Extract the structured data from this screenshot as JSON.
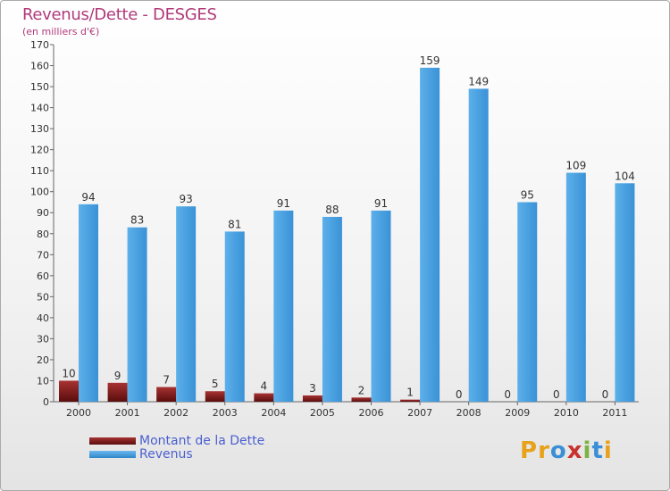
{
  "chart_data": {
    "type": "bar",
    "title": "Revenus/Dette - DESGES",
    "subtitle": "(en milliers d'€)",
    "categories": [
      "2000",
      "2001",
      "2002",
      "2003",
      "2004",
      "2005",
      "2006",
      "2007",
      "2008",
      "2009",
      "2010",
      "2011"
    ],
    "series": [
      {
        "name": "Montant de la Dette",
        "color": "#8b1a1a",
        "values": [
          10,
          9,
          7,
          5,
          4,
          3,
          2,
          1,
          0,
          0,
          0,
          0
        ]
      },
      {
        "name": "Revenus",
        "color": "#4aa3e0",
        "values": [
          94,
          83,
          93,
          81,
          91,
          88,
          91,
          159,
          149,
          95,
          109,
          104
        ]
      }
    ],
    "ylim": [
      0,
      170
    ],
    "yticks": [
      0,
      10,
      20,
      30,
      40,
      50,
      60,
      70,
      80,
      90,
      100,
      110,
      120,
      130,
      140,
      150,
      160,
      170
    ],
    "grid": false,
    "legend_position": "bottom-left"
  },
  "legend": {
    "debt_label": "Montant de la Dette",
    "revenue_label": "Revenus"
  },
  "logo": {
    "letters": [
      "P",
      "r",
      "o",
      "x",
      "i",
      "t",
      "i"
    ],
    "colors": [
      "#e8a21a",
      "#e8a21a",
      "#3a8fd6",
      "#c8312e",
      "#7cb342",
      "#3a8fd6",
      "#e8a21a"
    ]
  }
}
